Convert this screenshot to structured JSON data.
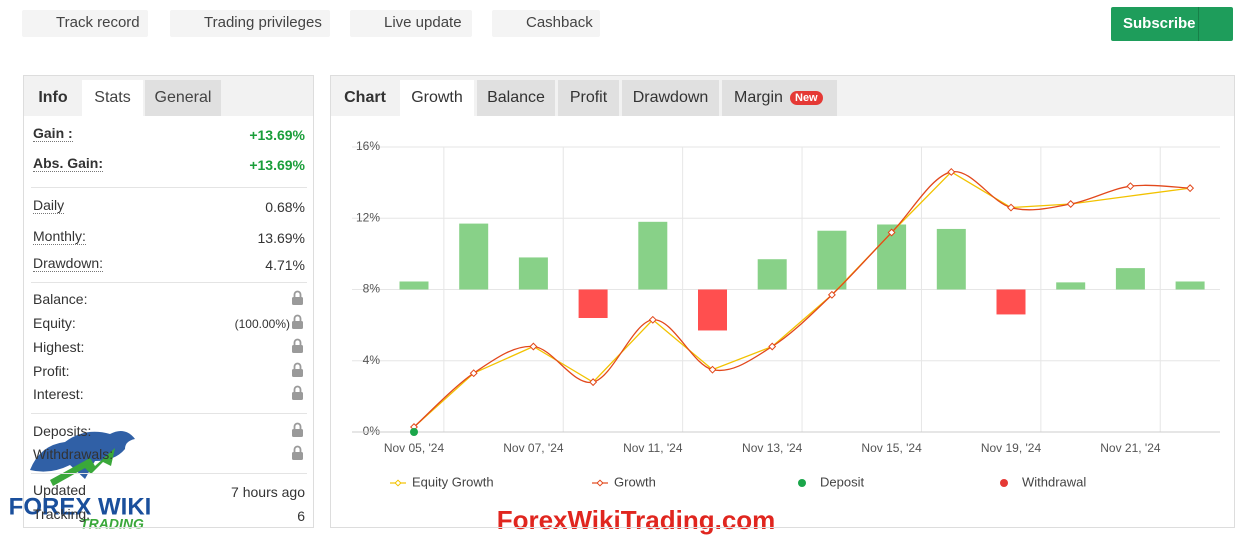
{
  "badges": [
    "Track record",
    "Trading privileges",
    "Live update",
    "Cashback"
  ],
  "subscribe": "Subscribe",
  "stats_tabs": [
    "Info",
    "Stats",
    "General"
  ],
  "stats": [
    [
      {
        "label": "Gain :",
        "value": "+13.69%"
      },
      {
        "label": "Abs. Gain:",
        "value": "+13.69%"
      }
    ],
    [
      {
        "label": "Daily",
        "value": "0.68%"
      },
      {
        "label": "Monthly:",
        "value": "13.69%"
      },
      {
        "label": "Drawdown:",
        "value": "4.71%"
      }
    ],
    [
      {
        "label": "Balance:"
      },
      {
        "label": "Equity:",
        "value": "(100.00%)"
      },
      {
        "label": "Highest:"
      },
      {
        "label": "Profit:"
      },
      {
        "label": "Interest:"
      }
    ],
    [
      {
        "label": "Deposits:"
      },
      {
        "label": "Withdrawals:"
      }
    ],
    [
      {
        "label": "Updated",
        "value": "7 hours ago"
      },
      {
        "label": "Tracking:",
        "value": "6"
      }
    ]
  ],
  "chart_tabs": [
    "Chart",
    "Growth",
    "Balance",
    "Profit",
    "Drawdown",
    "Margin"
  ],
  "new_badge": "New",
  "watermark": {
    "logo_top": "FOREX WIKI",
    "logo_bottom": "TRADING",
    "site": "ForexWikiTrading.com"
  },
  "chart_data": {
    "type": "line",
    "categories": [
      "Nov 05, '24",
      null,
      "Nov 07, '24",
      null,
      "Nov 11, '24",
      null,
      "Nov 13, '24",
      null,
      "Nov 15, '24",
      null,
      "Nov 19, '24",
      null,
      "Nov 21, '24",
      null
    ],
    "ylim": [
      0,
      16
    ],
    "yticks": [
      {
        "value": 0,
        "label": "0%"
      },
      {
        "value": 4,
        "label": "4%"
      },
      {
        "value": 8,
        "label": "8%"
      },
      {
        "value": 12,
        "label": "12%"
      },
      {
        "value": 16,
        "label": "16%"
      }
    ],
    "y2lim": [
      -8,
      8
    ],
    "grid": true,
    "bars": {
      "axis": "y2",
      "positive_color": "#88d188",
      "negative_color": "#ff4f4f",
      "values": [
        0.45,
        3.7,
        1.8,
        -1.6,
        3.8,
        -2.3,
        1.7,
        3.3,
        3.65,
        3.4,
        -1.4,
        0.4,
        1.2,
        0.45
      ]
    },
    "series": [
      {
        "name": "Equity Growth",
        "type": "line",
        "color": "#f2c200",
        "values": [
          0.28,
          3.3,
          4.8,
          2.8,
          6.3,
          3.5,
          4.8,
          7.7,
          11.2,
          14.6,
          12.6,
          12.8,
          13.25,
          13.69
        ]
      },
      {
        "name": "Growth",
        "type": "line",
        "color": "#e2481c",
        "values": [
          0.28,
          3.3,
          4.8,
          2.8,
          6.3,
          3.5,
          4.8,
          7.7,
          11.2,
          14.6,
          12.6,
          12.8,
          13.8,
          13.69
        ]
      },
      {
        "name": "Deposit",
        "type": "scatter",
        "color": "#1aa64a",
        "values": [
          0,
          null,
          null,
          null,
          null,
          null,
          null,
          null,
          null,
          null,
          null,
          null,
          null,
          null
        ]
      },
      {
        "name": "Withdrawal",
        "type": "scatter",
        "color": "#e53935",
        "values": [
          null,
          null,
          null,
          null,
          null,
          null,
          null,
          null,
          null,
          null,
          null,
          null,
          null,
          null
        ]
      }
    ],
    "legend": "bottom"
  }
}
